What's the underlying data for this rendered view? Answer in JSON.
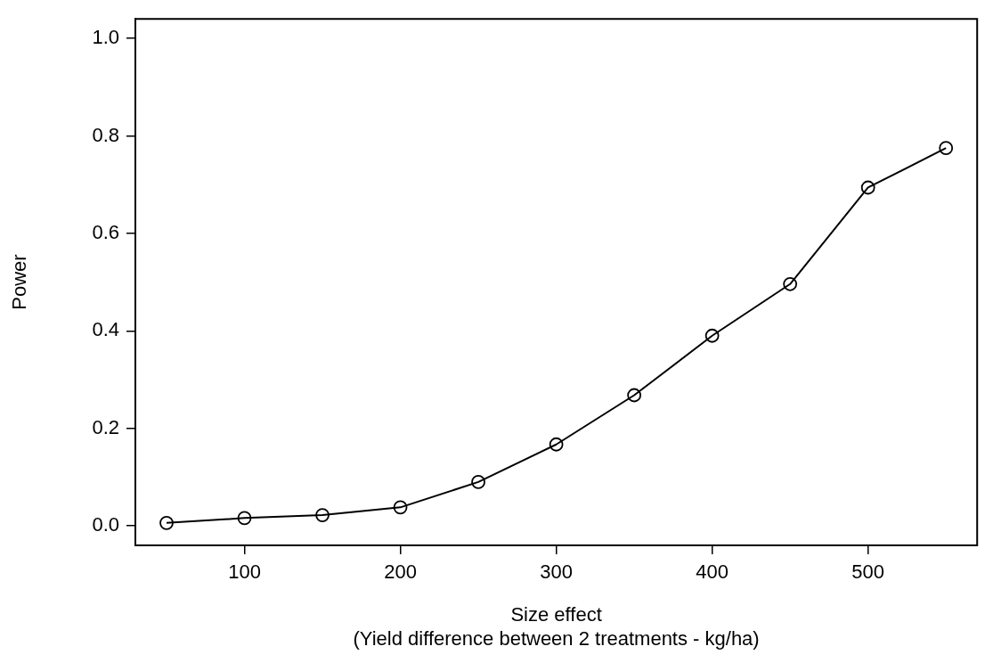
{
  "chart_data": {
    "type": "line",
    "xlabel": "Size effect\n(Yield difference between 2 treatments - kg/ha)",
    "ylabel": "Power",
    "x": [
      50,
      100,
      150,
      200,
      250,
      300,
      350,
      400,
      450,
      500,
      550
    ],
    "series": [
      {
        "color": "#000000",
        "values": [
          0.006,
          0.016,
          0.022,
          0.038,
          0.09,
          0.167,
          0.268,
          0.39,
          0.496,
          0.694,
          0.775
        ]
      }
    ],
    "xlim": [
      30,
      570
    ],
    "xticks": [
      100,
      200,
      300,
      400,
      500
    ],
    "ylim": [
      -0.04,
      1.04
    ],
    "yticks": [
      {
        "value": 0,
        "label": "0.0"
      },
      {
        "value": 0.2,
        "label": "0.2"
      },
      {
        "value": 0.4,
        "label": "0.4"
      },
      {
        "value": 0.6,
        "label": "0.6"
      },
      {
        "value": 0.8,
        "label": "0.8"
      },
      {
        "value": 1,
        "label": "1.0"
      }
    ],
    "marker": "circle",
    "line_style": "solid",
    "legend": false,
    "grid": false
  }
}
